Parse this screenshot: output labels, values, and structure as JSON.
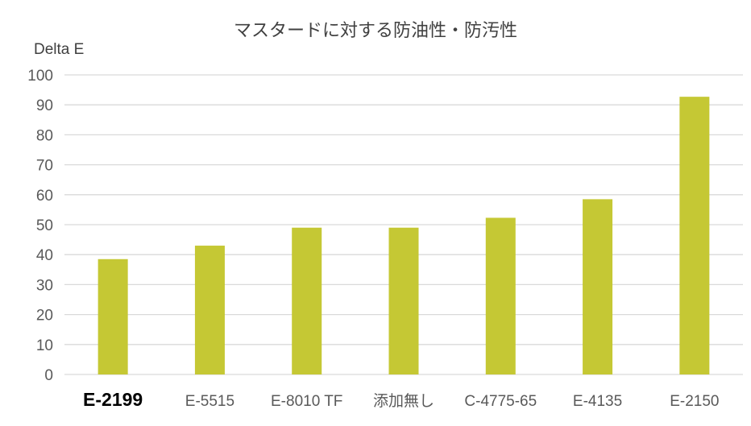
{
  "chart_data": {
    "type": "bar",
    "title": "マスタードに対する防油性・防汚性",
    "xlabel": "",
    "ylabel": "Delta E",
    "ylim": [
      0,
      100
    ],
    "yticks": [
      0,
      10,
      20,
      30,
      40,
      50,
      60,
      70,
      80,
      90,
      100
    ],
    "grid": true,
    "legend": "none",
    "bar_color": "#c5c834",
    "highlighted_category": "E-2199",
    "categories": [
      "E-2199",
      "E-5515",
      "E-8010 TF",
      "添加無し",
      "C-4775-65",
      "E-4135",
      "E-2150"
    ],
    "values": [
      38.5,
      43,
      49,
      49,
      52.3,
      58.5,
      92.7
    ]
  }
}
